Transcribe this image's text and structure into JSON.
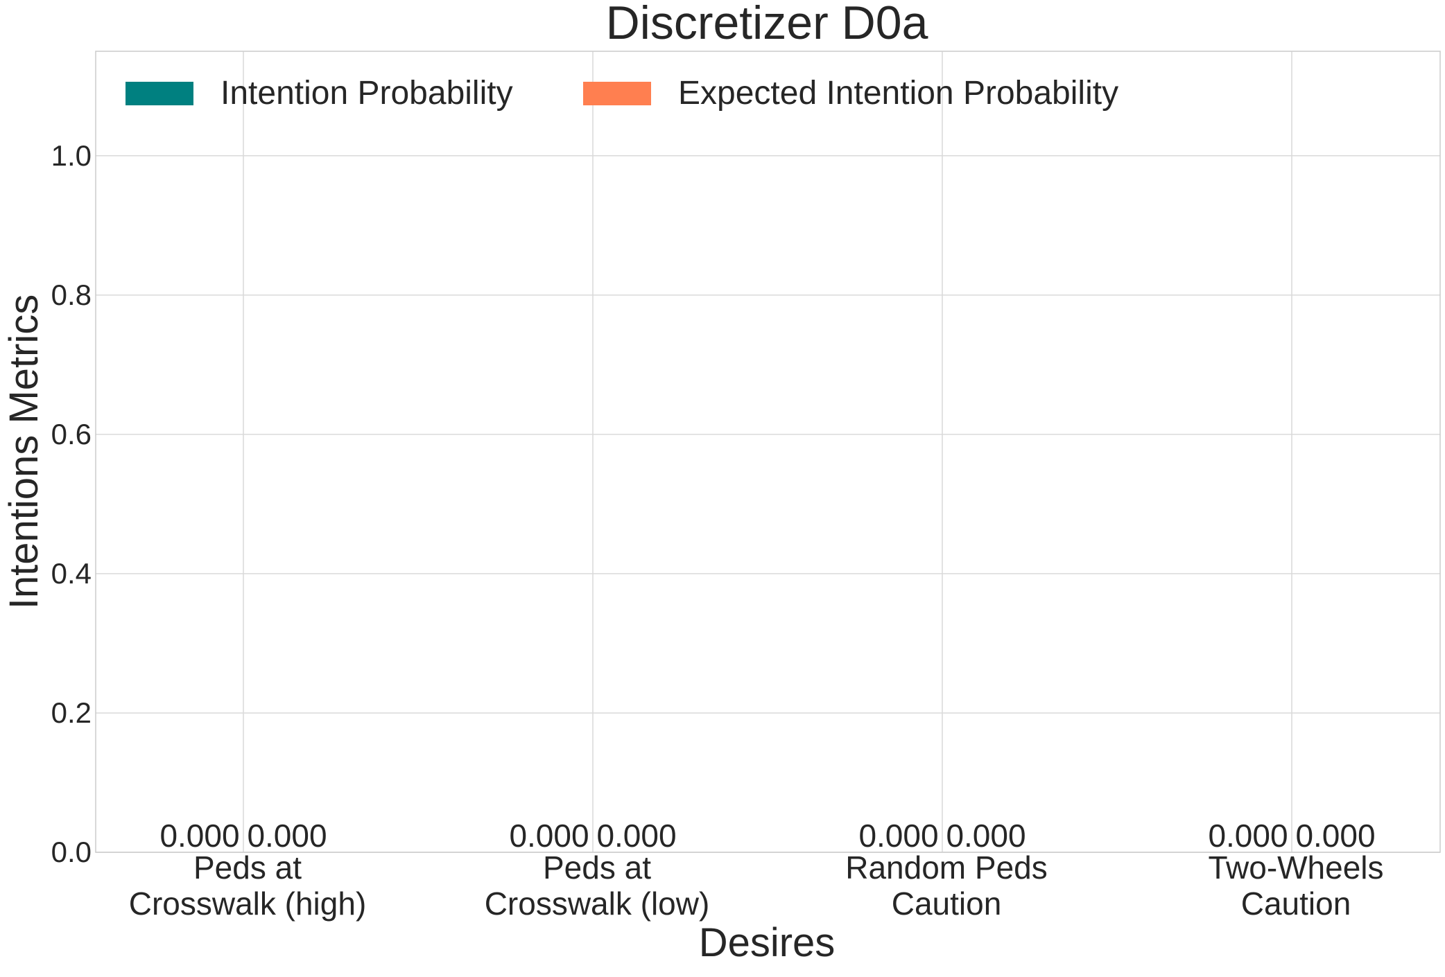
{
  "chart_data": {
    "type": "bar",
    "title": "Discretizer D0a",
    "xlabel": "Desires",
    "ylabel": "Intentions Metrics",
    "categories": [
      [
        "Peds at",
        "Crosswalk (high)"
      ],
      [
        "Peds at",
        "Crosswalk (low)"
      ],
      [
        "Random Peds",
        "Caution"
      ],
      [
        "Two-Wheels",
        "Caution"
      ]
    ],
    "series": [
      {
        "name": "Intention Probability",
        "color": "#008080",
        "values": [
          0.0,
          0.0,
          0.0,
          0.0
        ],
        "value_labels": [
          "0.000",
          "0.000",
          "0.000",
          "0.000"
        ]
      },
      {
        "name": "Expected Intention Probability",
        "color": "#ff7f50",
        "values": [
          0.0,
          0.0,
          0.0,
          0.0
        ],
        "value_labels": [
          "0.000",
          "0.000",
          "0.000",
          "0.000"
        ]
      }
    ],
    "ylim": [
      0,
      1.15
    ],
    "yticks": [
      0.0,
      0.2,
      0.4,
      0.6,
      0.8,
      1.0
    ],
    "ytick_labels": [
      "0.0",
      "0.2",
      "0.4",
      "0.6",
      "0.8",
      "1.0"
    ],
    "grid": true,
    "legend_placement": "top-left"
  }
}
